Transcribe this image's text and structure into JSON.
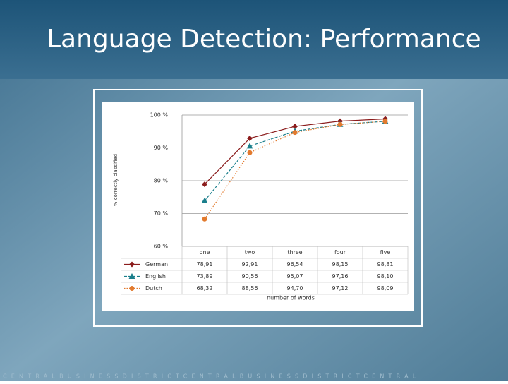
{
  "slide_title": "Language Detection: Performance",
  "footer": "CENTRALBUSINESSDISTRICTCENTRALBUSINESSDISTRICTCENTRAL",
  "chart_data": {
    "type": "line",
    "y_label": "% correctly classified",
    "x_label": "number of words",
    "categories": [
      "one",
      "two",
      "three",
      "four",
      "five"
    ],
    "ylim": [
      60,
      100
    ],
    "yticks": [
      {
        "value": 60,
        "label": "60 %"
      },
      {
        "value": 70,
        "label": "70 %"
      },
      {
        "value": 80,
        "label": "80 %"
      },
      {
        "value": 90,
        "label": "90 %"
      },
      {
        "value": 100,
        "label": "100 %"
      }
    ],
    "grid": true,
    "series": [
      {
        "name": "German",
        "color": "#8b1c1c",
        "marker": "diamond",
        "dash": "solid",
        "values": [
          78.91,
          92.91,
          96.54,
          98.15,
          98.81
        ],
        "value_labels": [
          "78,91",
          "92,91",
          "96,54",
          "98,15",
          "98,81"
        ]
      },
      {
        "name": "English",
        "color": "#1b7f8c",
        "marker": "triangle",
        "dash": "dashed",
        "values": [
          73.89,
          90.56,
          95.07,
          97.16,
          98.1
        ],
        "value_labels": [
          "73,89",
          "90,56",
          "95,07",
          "97,16",
          "98,10"
        ]
      },
      {
        "name": "Dutch",
        "color": "#e27a2e",
        "marker": "circle",
        "dash": "dotted",
        "values": [
          68.32,
          88.56,
          94.7,
          97.12,
          98.09
        ],
        "value_labels": [
          "68,32",
          "88,56",
          "94,70",
          "97,12",
          "98,09"
        ]
      }
    ]
  }
}
